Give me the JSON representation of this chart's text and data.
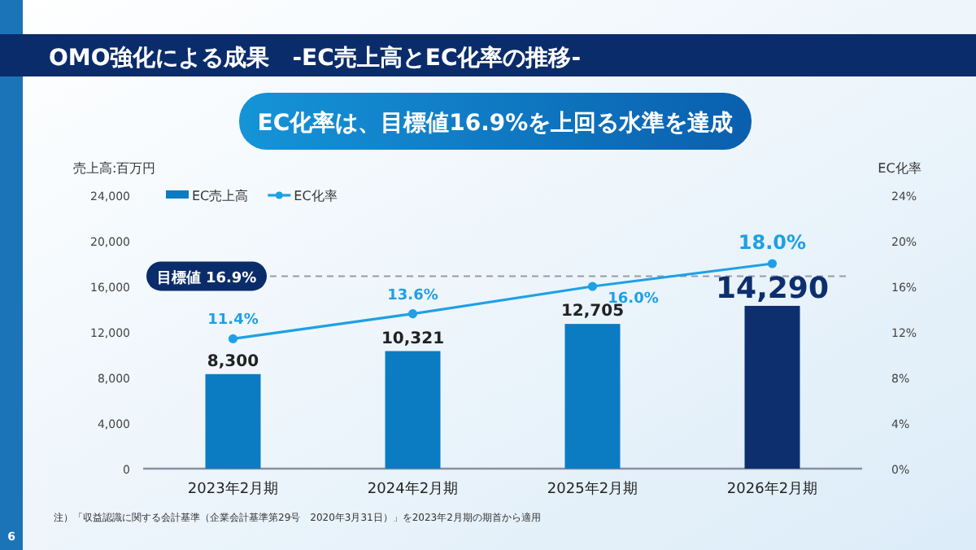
{
  "chart_data": {
    "type": "bar",
    "title": "OMO強化による成果　-EC売上高とEC化率の推移-",
    "subtitle": "EC化率は、目標値16.9%を上回る水準を達成",
    "ylabel": "売上高:百万円",
    "y2label": "EC化率",
    "categories": [
      "2023年2月期",
      "2024年2月期",
      "2025年2月期",
      "2026年2月期"
    ],
    "series": [
      {
        "name": "EC売上高",
        "color": "#0b7cc2",
        "colors": [
          "#0b7cc2",
          "#0b7cc2",
          "#0b7cc2",
          "#0d2f6e"
        ],
        "values": [
          8300,
          10321,
          12705,
          14290
        ],
        "value_labels": [
          "8,300",
          "10,321",
          "12,705",
          "14,290"
        ]
      },
      {
        "name": "EC化率",
        "type": "line",
        "axis": "y2",
        "color": "#1ea0e6",
        "marker": "circle",
        "values": [
          11.4,
          13.6,
          16.0,
          18.0
        ],
        "value_labels": [
          "11.4%",
          "13.6%",
          "16.0%",
          "18.0%"
        ]
      }
    ],
    "ylim": [
      0,
      24000
    ],
    "yticks": [
      0,
      {
        "value": 4000,
        "label": "4,000"
      },
      {
        "value": 8000,
        "label": "8,000"
      },
      {
        "value": 12000,
        "label": "12,000"
      },
      {
        "value": 16000,
        "label": "16,000"
      },
      {
        "value": 20000,
        "label": "20,000"
      },
      {
        "value": 24000,
        "label": "24,000"
      }
    ],
    "y2lim": [
      0,
      24
    ],
    "y2ticks": [
      {
        "value": 0,
        "label": "0%"
      },
      {
        "value": 4,
        "label": "4%"
      },
      {
        "value": 8,
        "label": "8%"
      },
      {
        "value": 12,
        "label": "12%"
      },
      {
        "value": 16,
        "label": "16%"
      },
      {
        "value": 20,
        "label": "20%"
      },
      {
        "value": 24,
        "label": "24%"
      }
    ],
    "ref_lines": [
      {
        "axis": "y2",
        "value": 16.9,
        "label": "目標値 16.9%",
        "color": "#9a9aa8",
        "line_style": "dashed"
      }
    ],
    "legend": "top left",
    "annotations": [
      "注）「収益認識に関する会計基準（企業会計基準第29号　2020年3月31日）」を2023年2月期の期首から適用",
      "6"
    ]
  }
}
